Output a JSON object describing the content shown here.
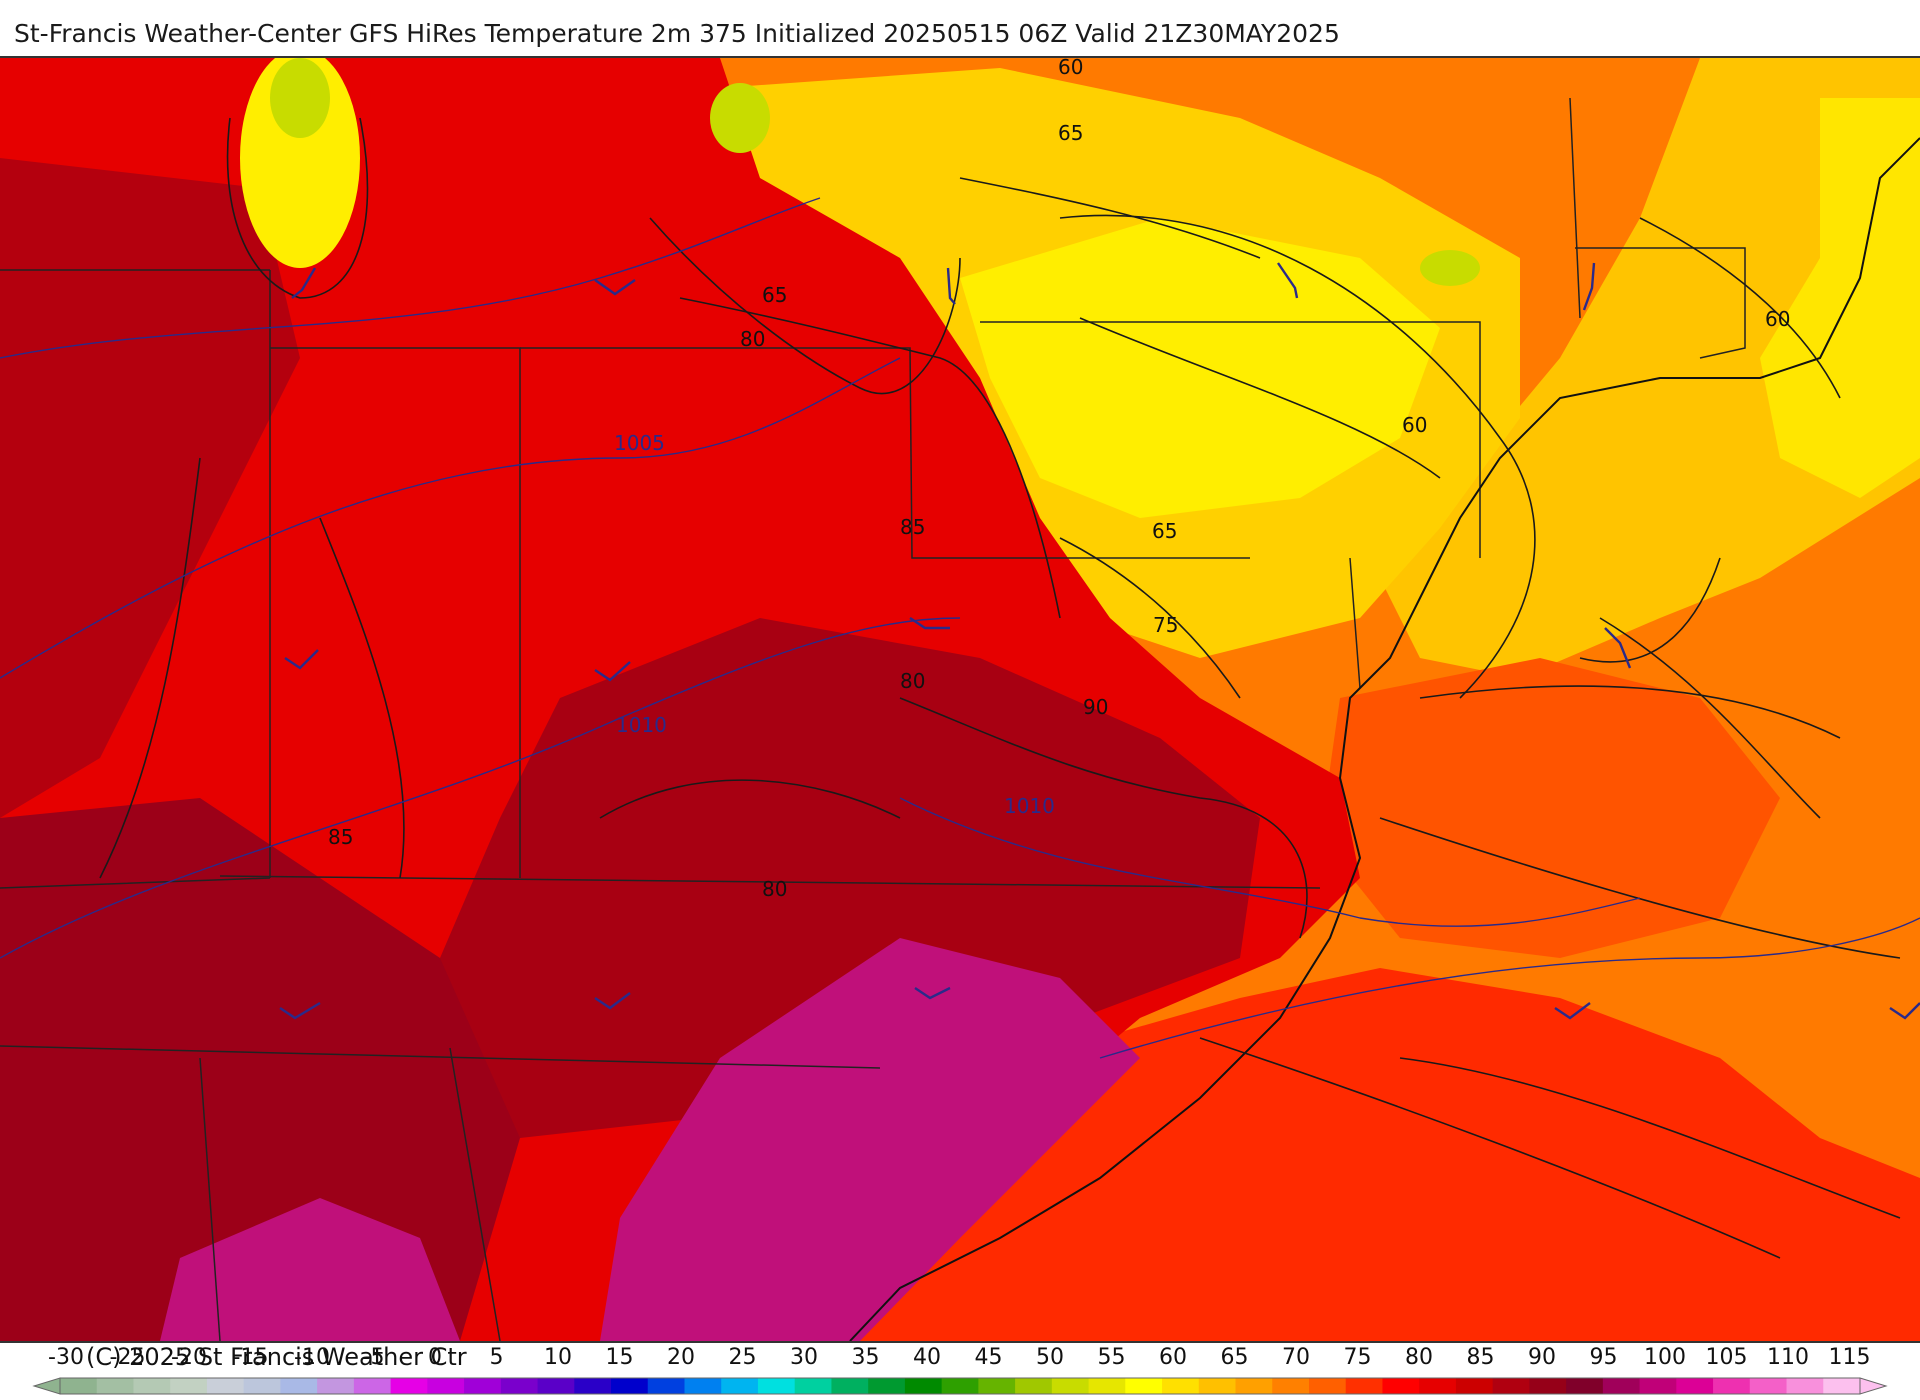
{
  "title": "St-Francis Weather-Center GFS HiRes Temperature 2m  375 Initialized 20250515 06Z Valid 21Z30MAY2025",
  "copyright": "(C) 2025 St Francis Weather Ctr",
  "colorbar": {
    "ticks": [
      "-30",
      "-25",
      "-20",
      "-15",
      "-10",
      "-5",
      "0",
      "5",
      "10",
      "15",
      "20",
      "25",
      "30",
      "35",
      "40",
      "45",
      "50",
      "55",
      "60",
      "65",
      "70",
      "75",
      "80",
      "85",
      "90",
      "95",
      "100",
      "105",
      "110",
      "115"
    ],
    "colors": [
      "#8fb38f",
      "#a3bfa3",
      "#b4c9b4",
      "#c2d1c2",
      "#c9cfd9",
      "#bcc6dc",
      "#a9b9e6",
      "#c396e0",
      "#cc66e6",
      "#e600e6",
      "#c800e0",
      "#a000d8",
      "#7a00cc",
      "#5a00c8",
      "#2a00c8",
      "#0000cc",
      "#0040e0",
      "#0080f0",
      "#00b4f0",
      "#00e0e0",
      "#00d0a0",
      "#00b060",
      "#009a30",
      "#008a00",
      "#2ea000",
      "#66b400",
      "#a0c800",
      "#c8dc00",
      "#e6e600",
      "#ffff00",
      "#ffe000",
      "#ffc000",
      "#ffa000",
      "#ff8000",
      "#ff6000",
      "#ff3000",
      "#ff0000",
      "#e60000",
      "#cc0000",
      "#b00010",
      "#960018",
      "#80002a",
      "#a0005a",
      "#c00078",
      "#dc0096",
      "#ee30b0",
      "#f460c8",
      "#f890dc",
      "#fcc0ee"
    ]
  },
  "contour_labels": {
    "temperature": [
      "60",
      "65",
      "65",
      "80",
      "60",
      "60",
      "85",
      "65",
      "75",
      "80",
      "90",
      "85",
      "80"
    ],
    "pressure": [
      "1005",
      "1010",
      "1010"
    ]
  },
  "colors": {
    "hot_magenta": "#c0107a",
    "deep_red": "#a00014",
    "red": "#e60000",
    "orange_red": "#ff3c00",
    "orange": "#ff7a00",
    "amber": "#ffb400",
    "yellow": "#ffee00",
    "contour": "#1a1a1a",
    "isobar": "#2a2a8a"
  }
}
